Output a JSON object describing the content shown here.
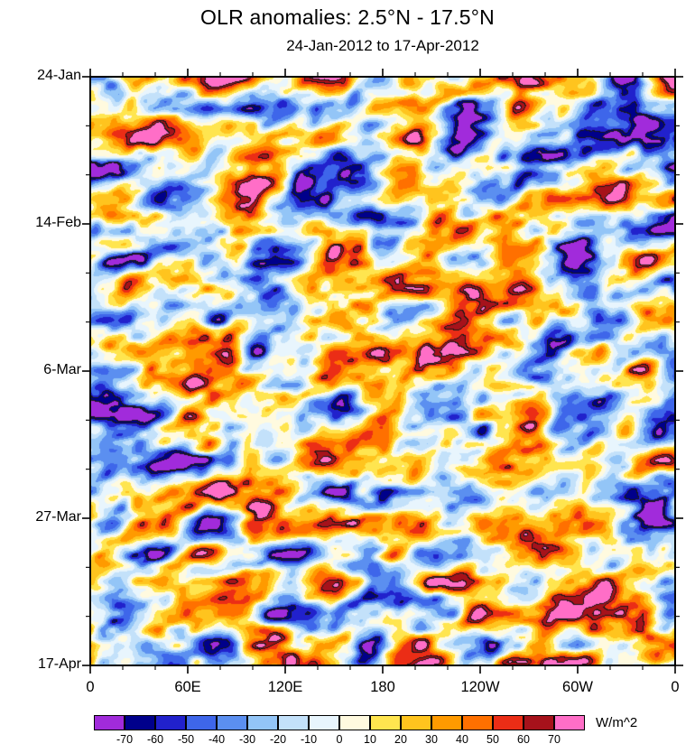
{
  "page": {
    "background": "#FFFFFF"
  },
  "chart_data": {
    "type": "heatmap",
    "variant": "filled-contour hovmoller (time vs longitude)",
    "title": "OLR anomalies: 2.5°N - 17.5°N",
    "subtitle": "24-Jan-2012 to 17-Apr-2012",
    "x_axis": {
      "tick_labels": [
        "0",
        "60E",
        "120E",
        "180",
        "120W",
        "60W",
        "0"
      ],
      "range_degrees_east": [
        0,
        360
      ],
      "minor_tick_interval_degrees": 20
    },
    "y_axis": {
      "tick_labels": [
        "24-Jan",
        "14-Feb",
        "6-Mar",
        "27-Mar",
        "17-Apr"
      ],
      "start_date": "24-Jan-2012",
      "end_date": "17-Apr-2012",
      "orientation": "time increases downward",
      "major_tick_interval_days": 21
    },
    "colorbar": {
      "unit": "W/m^2",
      "boundary_labels": [
        "-70",
        "-60",
        "-50",
        "-40",
        "-30",
        "-20",
        "-10",
        "0",
        "10",
        "20",
        "30",
        "40",
        "50",
        "60",
        "70"
      ],
      "levels": [
        -70,
        -60,
        -50,
        -40,
        -30,
        -20,
        -10,
        0,
        10,
        20,
        30,
        40,
        50,
        60,
        70
      ],
      "colors": [
        "#A12BDB",
        "#00008B",
        "#2121CC",
        "#3E66EA",
        "#5B8FF0",
        "#93C5F7",
        "#C3E1FA",
        "#E8F5FD",
        "#FFFADF",
        "#FFE54F",
        "#FFC41E",
        "#FF9A00",
        "#FF7000",
        "#EB2D16",
        "#A6121B",
        "#FF6EC7"
      ]
    },
    "field_note": "2D OLR anomaly field in W/m^2 spanning 0-360E by 24-Jan to 17-Apr-2012; individual cell values are not readable from the image, so the texture is procedurally generated to match the plotted color levels."
  }
}
